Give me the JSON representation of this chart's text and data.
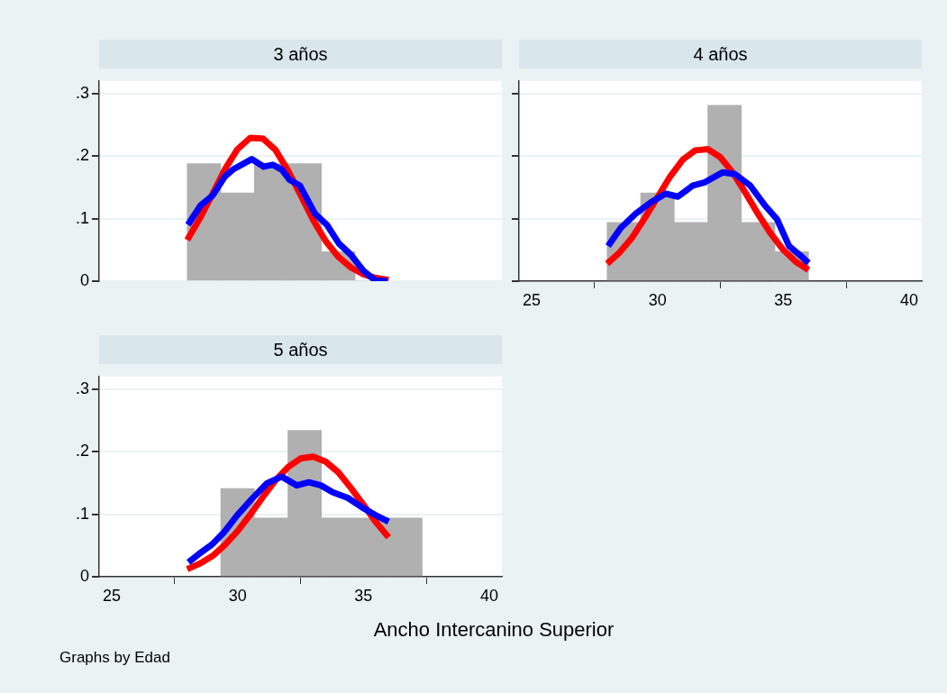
{
  "chart_data": [
    {
      "type": "histogram",
      "title": "3 años",
      "bins": [
        28,
        29.333,
        30.667,
        32,
        33.333,
        34.667,
        36
      ],
      "values": [
        0.188,
        0.141,
        0.188,
        0.188,
        0.047,
        0
      ],
      "color": "#b0b0b0",
      "series": [
        {
          "type": "line",
          "color": "#0000ff",
          "x": [
            28.03,
            28.53,
            29.01,
            29.49,
            29.84,
            30.56,
            31.04,
            31.4,
            31.76,
            32.06,
            32.47,
            33.07,
            33.55,
            34.03,
            34.51,
            34.99,
            35.47,
            35.94
          ],
          "values": [
            0.09,
            0.121,
            0.137,
            0.167,
            0.179,
            0.195,
            0.183,
            0.186,
            0.178,
            0.162,
            0.153,
            0.108,
            0.09,
            0.06,
            0.042,
            0.017,
            0.001,
            0
          ]
        },
        {
          "type": "line",
          "color": "#ff0000",
          "x": [
            28,
            28.5,
            29,
            29.5,
            30,
            30.5,
            31,
            31.5,
            32,
            32.5,
            33,
            33.5,
            34,
            34.5,
            35,
            35.5,
            36
          ],
          "values": [
            0.066,
            0.1,
            0.139,
            0.179,
            0.211,
            0.229,
            0.228,
            0.21,
            0.177,
            0.138,
            0.098,
            0.064,
            0.039,
            0.022,
            0.011,
            0.005,
            0.002
          ]
        }
      ],
      "xlim": [
        24.5,
        40.5
      ],
      "xticks": [
        25,
        30,
        35,
        40
      ],
      "ylim": [
        0,
        0.32
      ],
      "yticks": [
        0,
        {
          "value": 0.1,
          "label": ".1"
        },
        {
          "value": 0.2,
          "label": ".2"
        },
        {
          "value": 0.3,
          "label": ".3"
        }
      ],
      "grid": "y",
      "tick_labels": "y"
    },
    {
      "type": "histogram",
      "title": "4 años",
      "bins": [
        28,
        29.333,
        30.667,
        32,
        33.333,
        34.667,
        36
      ],
      "values": [
        0.094,
        0.141,
        0.094,
        0.281,
        0.094,
        0.047
      ],
      "color": "#b0b0b0",
      "series": [
        {
          "type": "line",
          "color": "#0000ff",
          "x": [
            28.04,
            28.54,
            29.14,
            29.74,
            30.33,
            30.81,
            31.41,
            31.88,
            32.6,
            33.08,
            33.68,
            34.27,
            34.75,
            35.23,
            35.71,
            36
          ],
          "values": [
            0.056,
            0.085,
            0.108,
            0.126,
            0.14,
            0.135,
            0.153,
            0.158,
            0.174,
            0.171,
            0.153,
            0.121,
            0.099,
            0.056,
            0.04,
            0.029
          ]
        },
        {
          "type": "line",
          "color": "#ff0000",
          "x": [
            28,
            28.5,
            29,
            29.5,
            30,
            30.5,
            31,
            31.5,
            32,
            32.5,
            33,
            33.5,
            34,
            34.5,
            35,
            35.5,
            36
          ],
          "values": [
            0.028,
            0.046,
            0.07,
            0.101,
            0.134,
            0.167,
            0.194,
            0.209,
            0.211,
            0.198,
            0.173,
            0.141,
            0.107,
            0.076,
            0.05,
            0.031,
            0.018
          ]
        }
      ],
      "xlim": [
        24.5,
        40.5
      ],
      "xticks": [
        25,
        30,
        35,
        40
      ],
      "ylim": [
        0,
        0.32
      ],
      "yticks": [
        0,
        0.1,
        0.2,
        0.3
      ],
      "grid": "y",
      "tick_labels": "x"
    },
    {
      "type": "histogram",
      "title": "5 años",
      "bins": [
        29.333,
        30.667,
        32,
        33.333,
        34.667,
        36,
        37.333
      ],
      "values": [
        0.141,
        0.094,
        0.234,
        0.094,
        0.094,
        0.094
      ],
      "color": "#b0b0b0",
      "series": [
        {
          "type": "line",
          "color": "#0000ff",
          "x": [
            28.05,
            28.52,
            29,
            29.48,
            29.96,
            30.56,
            31.16,
            31.75,
            32.35,
            32.83,
            33.31,
            33.78,
            34.38,
            34.98,
            35.46,
            36
          ],
          "values": [
            0.023,
            0.038,
            0.052,
            0.072,
            0.097,
            0.124,
            0.149,
            0.16,
            0.146,
            0.151,
            0.146,
            0.135,
            0.126,
            0.11,
            0.099,
            0.088
          ]
        },
        {
          "type": "line",
          "color": "#ff0000",
          "x": [
            28,
            28.5,
            29,
            29.5,
            30,
            30.5,
            31,
            31.5,
            32,
            32.5,
            33,
            33.5,
            34,
            34.5,
            35,
            35.5,
            36
          ],
          "values": [
            0.012,
            0.021,
            0.033,
            0.051,
            0.073,
            0.099,
            0.127,
            0.154,
            0.175,
            0.189,
            0.192,
            0.184,
            0.167,
            0.142,
            0.115,
            0.087,
            0.063
          ]
        }
      ],
      "xlim": [
        24.5,
        40.5
      ],
      "xticks": [
        25,
        30,
        35,
        40
      ],
      "ylim": [
        0,
        0.32
      ],
      "yticks": [
        0,
        {
          "value": 0.1,
          "label": ".1"
        },
        {
          "value": 0.2,
          "label": ".2"
        },
        {
          "value": 0.3,
          "label": ".3"
        }
      ],
      "grid": "y",
      "xlabel": "Ancho Intercanino Superior",
      "annotations": [
        "Graphs by Edad"
      ]
    }
  ]
}
